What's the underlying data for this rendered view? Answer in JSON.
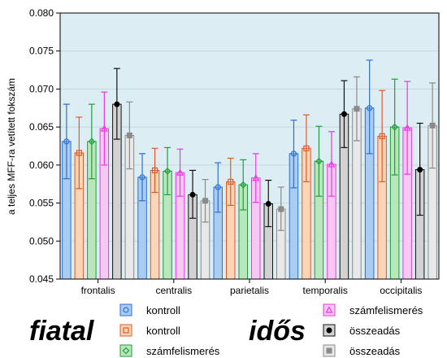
{
  "chart_data": {
    "type": "bar",
    "ylabel": "a teljes MFF-ra vetített fokszám",
    "ylim": [
      0.045,
      0.08
    ],
    "yticks": [
      "0.045",
      "0.050",
      "0.055",
      "0.060",
      "0.065",
      "0.070",
      "0.075",
      "0.080"
    ],
    "grid": true,
    "categories": [
      "frontalis",
      "centralis",
      "parietalis",
      "temporalis",
      "occipitalis"
    ],
    "groups": [
      {
        "label": "fiatal",
        "series": [
          0,
          1,
          2
        ]
      },
      {
        "label": "idős",
        "series": [
          3,
          4,
          5
        ]
      }
    ],
    "series": [
      {
        "name": "kontroll",
        "group": "fiatal",
        "fill": "#a9cdf2",
        "edge": "#2d6fd6",
        "marker": "circle",
        "values": [
          0.0631,
          0.0584,
          0.0571,
          0.0615,
          0.0675
        ],
        "err_low": [
          0.0582,
          0.0553,
          0.0538,
          0.057,
          0.0615
        ],
        "err_high": [
          0.068,
          0.0615,
          0.0603,
          0.0659,
          0.0738
        ]
      },
      {
        "name": "kontroll",
        "group": "idős",
        "fill": "#fbd5b5",
        "edge": "#e05a26",
        "marker": "square",
        "values": [
          0.0616,
          0.0593,
          0.0578,
          0.0622,
          0.0638
        ],
        "err_low": [
          0.0569,
          0.0564,
          0.0547,
          0.0578,
          0.0578
        ],
        "err_high": [
          0.0663,
          0.0622,
          0.0609,
          0.0666,
          0.0698
        ]
      },
      {
        "name": "számfelismerés",
        "group": "fiatal",
        "fill": "#b9e6ba",
        "edge": "#1f9e3c",
        "marker": "diamond",
        "values": [
          0.0631,
          0.0592,
          0.0574,
          0.0605,
          0.065
        ],
        "err_low": [
          0.0582,
          0.0561,
          0.0541,
          0.0559,
          0.0587
        ],
        "err_high": [
          0.068,
          0.0623,
          0.0607,
          0.0651,
          0.0713
        ]
      },
      {
        "name": "számfelismerés",
        "group": "idős",
        "fill": "#f8c8f4",
        "edge": "#ee36e0",
        "marker": "triangle",
        "values": [
          0.0648,
          0.059,
          0.0583,
          0.0601,
          0.0649
        ],
        "err_low": [
          0.06,
          0.0559,
          0.0551,
          0.0559,
          0.0588
        ],
        "err_high": [
          0.0696,
          0.0621,
          0.0615,
          0.0644,
          0.071
        ]
      },
      {
        "name": "összeadás",
        "group": "fiatal",
        "fill": "#d2d2d2",
        "edge": "#111111",
        "marker": "circle-filled",
        "values": [
          0.068,
          0.0561,
          0.0549,
          0.0667,
          0.0594
        ],
        "err_low": [
          0.0634,
          0.053,
          0.0519,
          0.0623,
          0.0534
        ],
        "err_high": [
          0.0727,
          0.0593,
          0.058,
          0.0711,
          0.0655
        ]
      },
      {
        "name": "összeadás",
        "group": "idős",
        "fill": "#e8e8e8",
        "edge": "#8a8a8a",
        "marker": "square-filled",
        "values": [
          0.0639,
          0.0553,
          0.0542,
          0.0674,
          0.0652
        ],
        "err_low": [
          0.0595,
          0.0525,
          0.0514,
          0.0632,
          0.0596
        ],
        "err_high": [
          0.0683,
          0.0581,
          0.0571,
          0.0716,
          0.0708
        ]
      }
    ],
    "bar_order": [
      0,
      1,
      2,
      3,
      4,
      5
    ],
    "plot_background": "#dceef3"
  }
}
